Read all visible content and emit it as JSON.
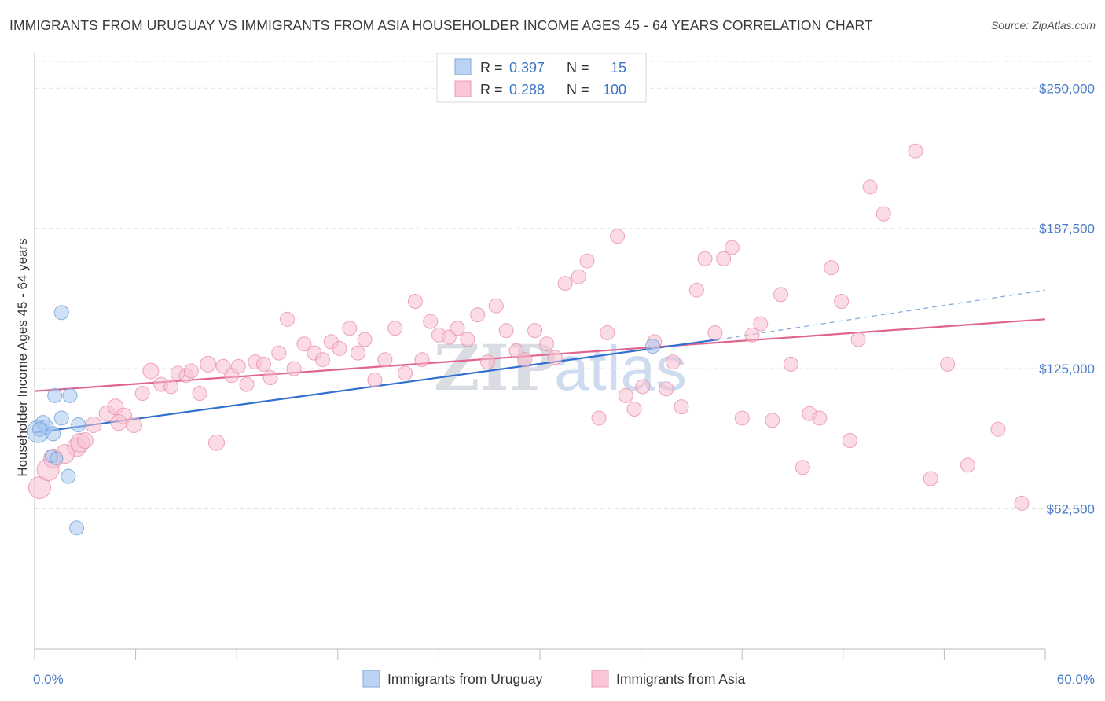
{
  "title": "IMMIGRANTS FROM URUGUAY VS IMMIGRANTS FROM ASIA HOUSEHOLDER INCOME AGES 45 - 64 YEARS CORRELATION CHART",
  "source": "Source: ZipAtlas.com",
  "watermark": {
    "zip": "ZIP",
    "atlas": "atlas"
  },
  "stats_legend": {
    "r_label": "R =",
    "n_label": "N =",
    "rows": [
      {
        "r": "0.397",
        "n": "15"
      },
      {
        "r": "0.288",
        "n": "100"
      }
    ]
  },
  "chart_data": {
    "type": "scatter",
    "title": "IMMIGRANTS FROM URUGUAY VS IMMIGRANTS FROM ASIA HOUSEHOLDER INCOME AGES 45 - 64 YEARS CORRELATION CHART",
    "xlabel": "",
    "ylabel": "Householder Income Ages 45 - 64 years",
    "xlim": [
      0,
      60
    ],
    "ylim": [
      0,
      262000
    ],
    "x_tick_labels": [
      "0.0%",
      "60.0%"
    ],
    "y_ticks": [
      62500,
      125000,
      187500,
      250000
    ],
    "y_tick_labels": [
      "$62,500",
      "$125,000",
      "$187,500",
      "$250,000"
    ],
    "grid": "horizontal dashed",
    "legend_position": "bottom-center",
    "series": [
      {
        "name": "Immigrants from Uruguay",
        "color": "#a9c8f0",
        "stroke": "#6f9fd8",
        "trend_color": "#2f6fcf",
        "trend": {
          "x0": 0,
          "y0": 96500,
          "x1": 40.6,
          "y1": 138000,
          "dashed_to_x": 60,
          "dashed_to_y": 160000
        },
        "points": [
          [
            0.2,
            97000,
            14
          ],
          [
            0.5,
            101000,
            9
          ],
          [
            0.7,
            99000,
            9
          ],
          [
            1.1,
            96000,
            9
          ],
          [
            1.0,
            86000,
            8
          ],
          [
            1.3,
            85000,
            8
          ],
          [
            1.2,
            113000,
            9
          ],
          [
            1.6,
            103000,
            9
          ],
          [
            2.1,
            113000,
            9
          ],
          [
            2.0,
            77000,
            9
          ],
          [
            2.6,
            100000,
            9
          ],
          [
            1.6,
            150000,
            9
          ],
          [
            2.5,
            54000,
            9
          ],
          [
            36.7,
            135000,
            9
          ],
          [
            0.3,
            98000,
            9
          ]
        ]
      },
      {
        "name": "Immigrants from Asia",
        "color": "#f8bfd0",
        "stroke": "#e98fab",
        "trend_color": "#e0648f",
        "trend": {
          "x0": 0,
          "y0": 115000,
          "x1": 60,
          "y1": 147000
        },
        "points": [
          [
            0.3,
            72000,
            14
          ],
          [
            0.8,
            80000,
            14
          ],
          [
            1.1,
            85000,
            12
          ],
          [
            2.5,
            90000,
            12
          ],
          [
            2.7,
            92000,
            12
          ],
          [
            3.5,
            100000,
            10
          ],
          [
            4.3,
            105000,
            10
          ],
          [
            4.8,
            108000,
            10
          ],
          [
            5.3,
            104000,
            10
          ],
          [
            5.9,
            100000,
            10
          ],
          [
            6.4,
            114000,
            9
          ],
          [
            6.9,
            124000,
            10
          ],
          [
            7.5,
            118000,
            9
          ],
          [
            8.1,
            117000,
            9
          ],
          [
            8.5,
            123000,
            9
          ],
          [
            9.0,
            122000,
            9
          ],
          [
            9.3,
            124000,
            9
          ],
          [
            9.8,
            114000,
            9
          ],
          [
            10.3,
            127000,
            10
          ],
          [
            10.8,
            92000,
            10
          ],
          [
            11.2,
            126000,
            9
          ],
          [
            11.7,
            122000,
            9
          ],
          [
            12.1,
            126000,
            9
          ],
          [
            12.6,
            118000,
            9
          ],
          [
            13.1,
            128000,
            9
          ],
          [
            13.6,
            127000,
            9
          ],
          [
            14.0,
            121000,
            9
          ],
          [
            14.5,
            132000,
            9
          ],
          [
            15.0,
            147000,
            9
          ],
          [
            15.4,
            125000,
            9
          ],
          [
            16.0,
            136000,
            9
          ],
          [
            16.6,
            132000,
            9
          ],
          [
            17.1,
            129000,
            9
          ],
          [
            17.6,
            137000,
            9
          ],
          [
            18.1,
            134000,
            9
          ],
          [
            18.7,
            143000,
            9
          ],
          [
            19.2,
            132000,
            9
          ],
          [
            19.6,
            138000,
            9
          ],
          [
            20.2,
            120000,
            9
          ],
          [
            20.8,
            129000,
            9
          ],
          [
            21.4,
            143000,
            9
          ],
          [
            22.0,
            123000,
            9
          ],
          [
            22.6,
            155000,
            9
          ],
          [
            23.0,
            129000,
            9
          ],
          [
            23.5,
            146000,
            9
          ],
          [
            24.0,
            140000,
            9
          ],
          [
            24.6,
            139000,
            9
          ],
          [
            25.1,
            143000,
            9
          ],
          [
            25.7,
            138000,
            9
          ],
          [
            26.3,
            149000,
            9
          ],
          [
            26.9,
            128000,
            9
          ],
          [
            27.4,
            153000,
            9
          ],
          [
            28.0,
            142000,
            9
          ],
          [
            28.6,
            133000,
            9
          ],
          [
            29.1,
            129000,
            9
          ],
          [
            29.7,
            142000,
            9
          ],
          [
            30.4,
            136000,
            9
          ],
          [
            30.9,
            130000,
            9
          ],
          [
            31.5,
            163000,
            9
          ],
          [
            32.3,
            166000,
            9
          ],
          [
            32.8,
            173000,
            9
          ],
          [
            33.5,
            103000,
            9
          ],
          [
            34.0,
            141000,
            9
          ],
          [
            34.6,
            184000,
            9
          ],
          [
            35.1,
            113000,
            9
          ],
          [
            35.6,
            107000,
            9
          ],
          [
            36.1,
            117000,
            9
          ],
          [
            36.8,
            137000,
            9
          ],
          [
            37.5,
            116000,
            9
          ],
          [
            37.9,
            128000,
            9
          ],
          [
            38.4,
            108000,
            9
          ],
          [
            39.3,
            160000,
            9
          ],
          [
            39.8,
            174000,
            9
          ],
          [
            40.4,
            141000,
            9
          ],
          [
            40.9,
            174000,
            9
          ],
          [
            41.4,
            179000,
            9
          ],
          [
            42.0,
            103000,
            9
          ],
          [
            42.6,
            140000,
            9
          ],
          [
            43.1,
            145000,
            9
          ],
          [
            43.8,
            102000,
            9
          ],
          [
            44.3,
            158000,
            9
          ],
          [
            44.9,
            127000,
            9
          ],
          [
            45.6,
            81000,
            9
          ],
          [
            46.0,
            105000,
            9
          ],
          [
            46.6,
            103000,
            9
          ],
          [
            47.3,
            170000,
            9
          ],
          [
            47.9,
            155000,
            9
          ],
          [
            48.4,
            93000,
            9
          ],
          [
            48.9,
            138000,
            9
          ],
          [
            49.6,
            206000,
            9
          ],
          [
            50.4,
            194000,
            9
          ],
          [
            52.3,
            222000,
            9
          ],
          [
            53.2,
            76000,
            9
          ],
          [
            54.2,
            127000,
            9
          ],
          [
            55.4,
            82000,
            9
          ],
          [
            57.2,
            98000,
            9
          ],
          [
            58.6,
            65000,
            9
          ],
          [
            3.0,
            93000,
            10
          ],
          [
            1.8,
            87000,
            12
          ],
          [
            5.0,
            101000,
            10
          ]
        ]
      }
    ]
  }
}
